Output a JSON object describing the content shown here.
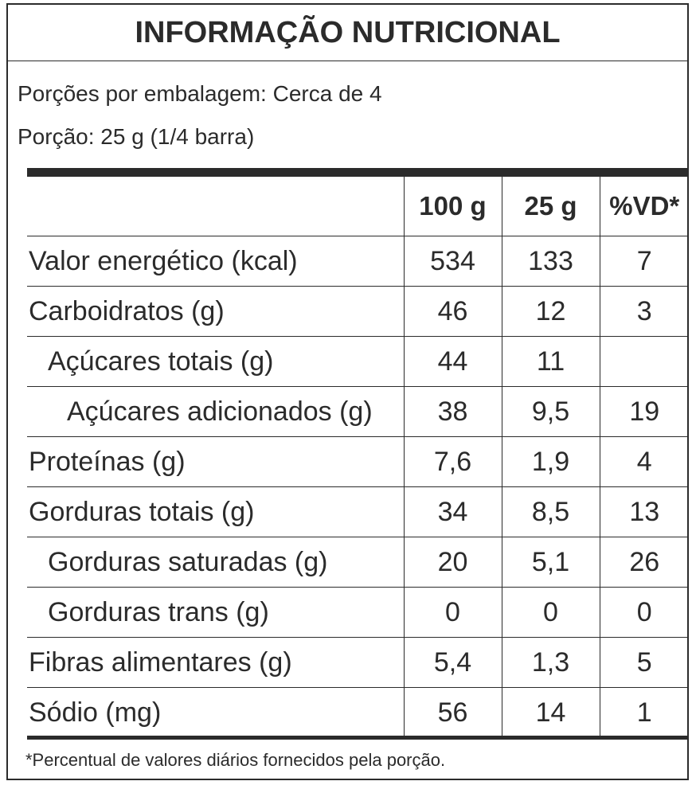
{
  "title": "INFORMAÇÃO NUTRICIONAL",
  "servings_per_package": "Porções por embalagem: Cerca de 4",
  "serving_size": "Porção: 25 g (1/4 barra)",
  "columns": [
    "100 g",
    "25 g",
    "%VD*"
  ],
  "rows": [
    {
      "name": "Valor energético (kcal)",
      "indent": 0,
      "c100": "534",
      "c25": "133",
      "vd": "7"
    },
    {
      "name": "Carboidratos (g)",
      "indent": 0,
      "c100": "46",
      "c25": "12",
      "vd": "3"
    },
    {
      "name": "Açúcares totais (g)",
      "indent": 1,
      "c100": "44",
      "c25": "11",
      "vd": ""
    },
    {
      "name": "Açúcares adicionados (g)",
      "indent": 2,
      "c100": "38",
      "c25": "9,5",
      "vd": "19"
    },
    {
      "name": "Proteínas (g)",
      "indent": 0,
      "c100": "7,6",
      "c25": "1,9",
      "vd": "4"
    },
    {
      "name": "Gorduras totais (g)",
      "indent": 0,
      "c100": "34",
      "c25": "8,5",
      "vd": "13"
    },
    {
      "name": "Gorduras saturadas (g)",
      "indent": 1,
      "c100": "20",
      "c25": "5,1",
      "vd": "26"
    },
    {
      "name": "Gorduras trans (g)",
      "indent": 1,
      "c100": "0",
      "c25": "0",
      "vd": "0"
    },
    {
      "name": "Fibras alimentares (g)",
      "indent": 0,
      "c100": "5,4",
      "c25": "1,3",
      "vd": "5"
    },
    {
      "name": "Sódio (mg)",
      "indent": 0,
      "c100": "56",
      "c25": "14",
      "vd": "1"
    }
  ],
  "footnote": "*Percentual de valores diários fornecidos pela porção."
}
